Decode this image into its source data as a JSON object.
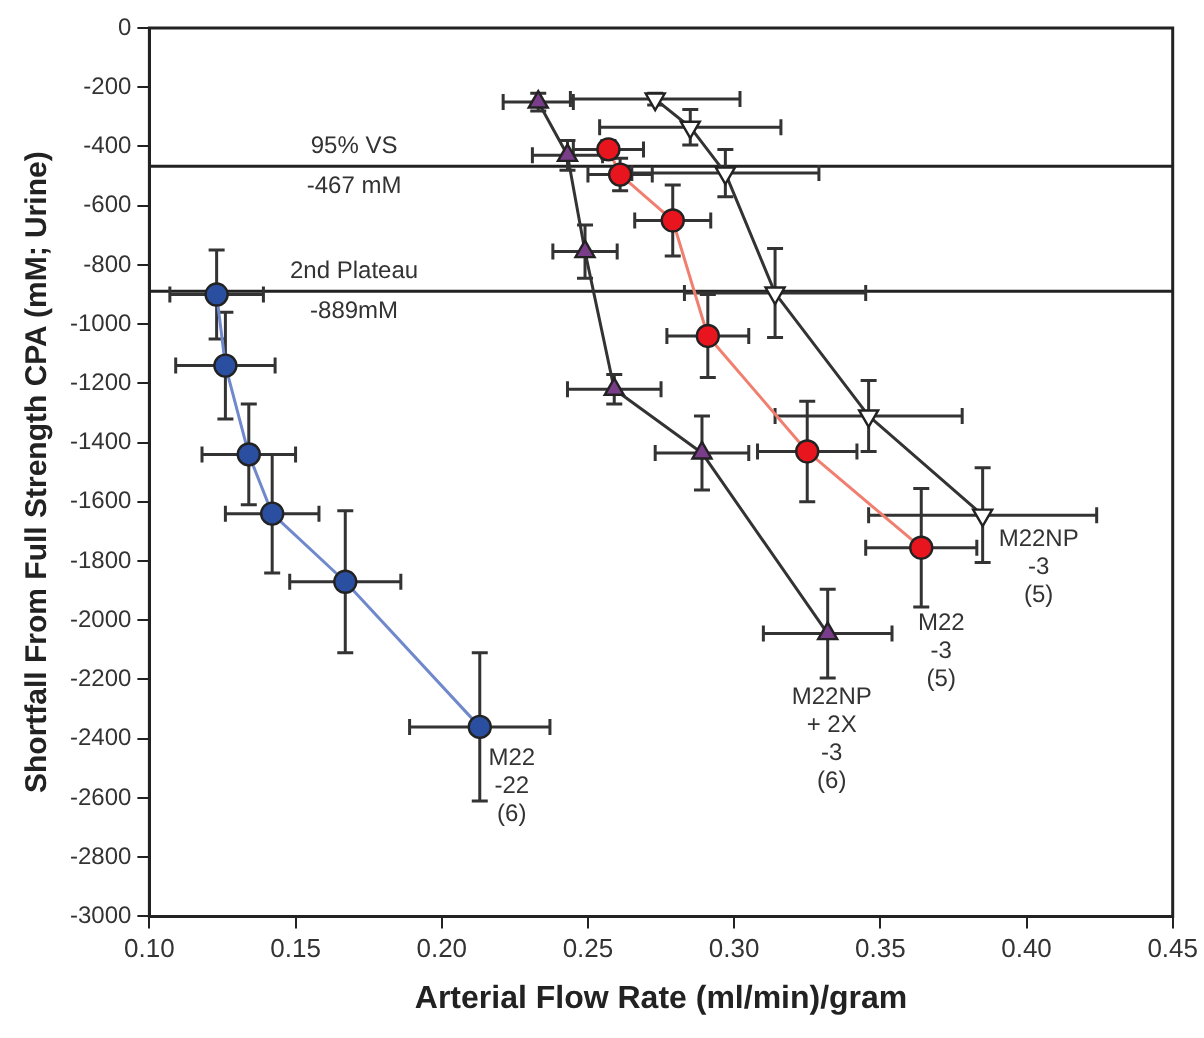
{
  "chart_data": {
    "type": "line",
    "xlabel": "Arterial Flow Rate (ml/min)/gram",
    "ylabel": "Shortfall From Full Strength CPA (mM; Urine)",
    "xlim": [
      0.1,
      0.45
    ],
    "xticks": [
      {
        "value": 0.1,
        "label": "0.10"
      },
      0.15,
      {
        "value": 0.2,
        "label": "0.20"
      },
      0.25,
      {
        "value": 0.3,
        "label": "0.30"
      },
      0.35,
      {
        "value": 0.4,
        "label": "0.40"
      },
      0.45
    ],
    "ylim": [
      -3000,
      0
    ],
    "yticks": [
      -3000,
      -2800,
      -2600,
      -2400,
      -2200,
      -2000,
      -1800,
      -1600,
      -1400,
      -1200,
      -1000,
      -800,
      -600,
      -400,
      -200,
      0
    ],
    "grid": false,
    "legend": false,
    "line_style": "solid",
    "ref_lines": [
      {
        "axis": "y",
        "value": -467,
        "label": "95% VS\n-467 mM",
        "color": "#222222"
      },
      {
        "axis": "y",
        "value": -889,
        "label": "2nd Plateau\n-889mM",
        "color": "#222222"
      }
    ],
    "series": [
      {
        "name": "M22\n-22\n(6)",
        "marker": "circle",
        "color": "#7088cc",
        "colors": [
          "#2b4fa0",
          "#2b4fa0",
          "#2b4fa0",
          "#2b4fa0",
          "#2b4fa0",
          "#2b4fa0"
        ],
        "x": [
          0.123,
          0.126,
          0.134,
          0.142,
          0.167,
          0.213
        ],
        "values": [
          -900,
          -1140,
          -1440,
          -1640,
          -1870,
          -2360
        ],
        "errors": [
          150,
          180,
          170,
          200,
          240,
          250
        ],
        "xerrors": [
          0.016,
          0.017,
          0.016,
          0.016,
          0.019,
          0.024
        ]
      },
      {
        "name": "M22NP\n+ 2X\n-3\n(6)",
        "marker": "triangle",
        "color": "#333333",
        "colors": [
          "#7a3d8a",
          "#7a3d8a",
          "#7a3d8a",
          "#7a3d8a",
          "#7a3d8a",
          "#7a3d8a"
        ],
        "x": [
          0.233,
          0.243,
          0.249,
          0.259,
          0.289,
          0.332
        ],
        "values": [
          -250,
          -430,
          -755,
          -1220,
          -1435,
          -2045
        ],
        "errors": [
          30,
          50,
          90,
          50,
          125,
          150
        ],
        "xerrors": [
          0.012,
          0.012,
          0.011,
          0.016,
          0.016,
          0.022
        ]
      },
      {
        "name": "M22\n-3\n(5)",
        "marker": "circle",
        "color": "#f07f70",
        "colors": [
          "#e8141e",
          "#e8141e",
          "#e8141e",
          "#e8141e",
          "#e8141e",
          "#e8141e"
        ],
        "x": [
          0.257,
          0.261,
          0.279,
          0.291,
          0.325,
          0.364
        ],
        "values": [
          -410,
          -495,
          -650,
          -1040,
          -1430,
          -1755
        ],
        "errors": [
          30,
          55,
          120,
          140,
          170,
          200
        ],
        "xerrors": [
          0.012,
          0.011,
          0.013,
          0.014,
          0.017,
          0.019
        ]
      },
      {
        "name": "M22NP\n-3\n(5)",
        "marker": "triangle-down",
        "color": "#333333",
        "colors": [
          "#ffffff",
          "#ffffff",
          "#ffffff",
          "#ffffff",
          "#ffffff",
          "#ffffff"
        ],
        "x": [
          0.273,
          0.285,
          0.297,
          0.314,
          0.346,
          0.385
        ],
        "values": [
          -240,
          -335,
          -490,
          -895,
          -1310,
          -1645
        ],
        "errors": [
          20,
          60,
          80,
          150,
          120,
          160
        ],
        "xerrors": [
          0.029,
          0.031,
          0.032,
          0.031,
          0.032,
          0.039
        ]
      }
    ]
  }
}
